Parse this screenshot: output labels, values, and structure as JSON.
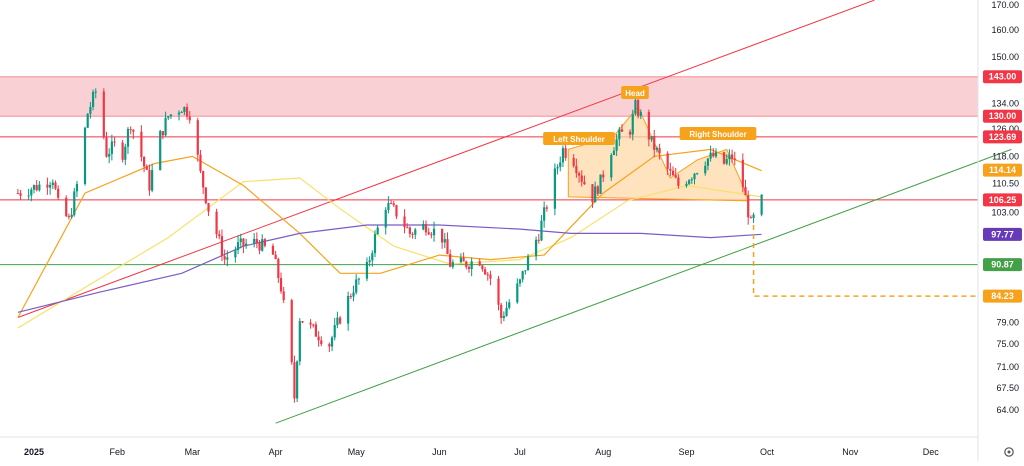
{
  "chart_data": {
    "type": "candlestick",
    "y_axis": {
      "scale": "log",
      "range": [
        61,
        172
      ],
      "ticks": [
        "170.00",
        "160.00",
        "150.00",
        "134.00",
        "126.00",
        "118.00",
        "110.50",
        "103.00",
        "79.00",
        "75.00",
        "71.00",
        "67.50",
        "64.00"
      ]
    },
    "x_axis": {
      "range": [
        "2024-12-26",
        "2025-12-31"
      ],
      "ticks": [
        {
          "label": "2025",
          "date": "2025-01-01",
          "bold": true
        },
        {
          "label": "Feb",
          "date": "2025-02-01",
          "bold": false
        },
        {
          "label": "Mar",
          "date": "2025-03-01",
          "bold": false
        },
        {
          "label": "Apr",
          "date": "2025-04-01",
          "bold": false
        },
        {
          "label": "May",
          "date": "2025-05-01",
          "bold": false
        },
        {
          "label": "Jun",
          "date": "2025-06-01",
          "bold": false
        },
        {
          "label": "Jul",
          "date": "2025-07-01",
          "bold": false
        },
        {
          "label": "Aug",
          "date": "2025-08-01",
          "bold": false
        },
        {
          "label": "Sep",
          "date": "2025-09-01",
          "bold": false
        },
        {
          "label": "Oct",
          "date": "2025-10-01",
          "bold": false
        },
        {
          "label": "Nov",
          "date": "2025-11-01",
          "bold": false
        },
        {
          "label": "Dec",
          "date": "2025-12-01",
          "bold": false
        }
      ]
    },
    "price_keypoints": [
      [
        "2024-12-26",
        108
      ],
      [
        "2025-01-03",
        110
      ],
      [
        "2025-01-08",
        112
      ],
      [
        "2025-01-10",
        105
      ],
      [
        "2025-01-14",
        101
      ],
      [
        "2025-01-17",
        110
      ],
      [
        "2025-01-21",
        131
      ],
      [
        "2025-01-24",
        138
      ],
      [
        "2025-01-28",
        119
      ],
      [
        "2025-01-31",
        121
      ],
      [
        "2025-02-03",
        119
      ],
      [
        "2025-02-06",
        128
      ],
      [
        "2025-02-10",
        118
      ],
      [
        "2025-02-13",
        110
      ],
      [
        "2025-02-17",
        124
      ],
      [
        "2025-02-20",
        130
      ],
      [
        "2025-02-25",
        133
      ],
      [
        "2025-02-28",
        131
      ],
      [
        "2025-03-04",
        113
      ],
      [
        "2025-03-07",
        104
      ],
      [
        "2025-03-10",
        98
      ],
      [
        "2025-03-13",
        92
      ],
      [
        "2025-03-18",
        95
      ],
      [
        "2025-03-25",
        96
      ],
      [
        "2025-03-31",
        93
      ],
      [
        "2025-04-03",
        86
      ],
      [
        "2025-04-07",
        71
      ],
      [
        "2025-04-08",
        66
      ],
      [
        "2025-04-10",
        80
      ],
      [
        "2025-04-14",
        78
      ],
      [
        "2025-04-21",
        75
      ],
      [
        "2025-04-25",
        80
      ],
      [
        "2025-04-30",
        86
      ],
      [
        "2025-05-05",
        90
      ],
      [
        "2025-05-08",
        97
      ],
      [
        "2025-05-12",
        105
      ],
      [
        "2025-05-16",
        103
      ],
      [
        "2025-05-21",
        98
      ],
      [
        "2025-05-27",
        100
      ],
      [
        "2025-06-02",
        97
      ],
      [
        "2025-06-05",
        91
      ],
      [
        "2025-06-10",
        91
      ],
      [
        "2025-06-16",
        92
      ],
      [
        "2025-06-20",
        88
      ],
      [
        "2025-06-24",
        80
      ],
      [
        "2025-06-27",
        83
      ],
      [
        "2025-07-01",
        87
      ],
      [
        "2025-07-04",
        92
      ],
      [
        "2025-07-08",
        98
      ],
      [
        "2025-07-11",
        105
      ],
      [
        "2025-07-14",
        113
      ],
      [
        "2025-07-17",
        120
      ],
      [
        "2025-07-21",
        117
      ],
      [
        "2025-07-24",
        112
      ],
      [
        "2025-07-28",
        107
      ],
      [
        "2025-07-31",
        111
      ],
      [
        "2025-08-04",
        120
      ],
      [
        "2025-08-07",
        124
      ],
      [
        "2025-08-11",
        126
      ],
      [
        "2025-08-13",
        133
      ],
      [
        "2025-08-15",
        130
      ],
      [
        "2025-08-19",
        122
      ],
      [
        "2025-08-22",
        118
      ],
      [
        "2025-08-26",
        113
      ],
      [
        "2025-08-29",
        110
      ],
      [
        "2025-09-03",
        113
      ],
      [
        "2025-09-08",
        117
      ],
      [
        "2025-09-11",
        118
      ],
      [
        "2025-09-15",
        116
      ],
      [
        "2025-09-18",
        118
      ],
      [
        "2025-09-22",
        110
      ],
      [
        "2025-09-25",
        100
      ],
      [
        "2025-09-29",
        106
      ]
    ],
    "series": [
      {
        "points": [
          [
            "2024-12-26",
            78
          ],
          [
            "2025-01-20",
            86
          ],
          [
            "2025-02-20",
            97
          ],
          [
            "2025-03-20",
            111
          ],
          [
            "2025-04-10",
            112
          ],
          [
            "2025-04-25",
            104
          ],
          [
            "2025-05-15",
            95
          ],
          [
            "2025-06-05",
            91
          ],
          [
            "2025-07-01",
            92
          ],
          [
            "2025-07-20",
            97
          ],
          [
            "2025-08-10",
            106
          ],
          [
            "2025-09-01",
            110
          ],
          [
            "2025-09-29",
            107
          ]
        ]
      },
      {
        "points": [
          [
            "2024-12-26",
            80
          ],
          [
            "2025-01-20",
            108
          ],
          [
            "2025-02-15",
            116
          ],
          [
            "2025-03-01",
            118
          ],
          [
            "2025-03-20",
            110
          ],
          [
            "2025-04-10",
            98
          ],
          [
            "2025-04-25",
            89
          ],
          [
            "2025-05-10",
            89
          ],
          [
            "2025-06-01",
            93
          ],
          [
            "2025-06-20",
            92
          ],
          [
            "2025-07-10",
            93
          ],
          [
            "2025-08-01",
            108
          ],
          [
            "2025-08-20",
            118
          ],
          [
            "2025-09-10",
            120
          ],
          [
            "2025-09-29",
            114
          ]
        ]
      },
      {
        "points": [
          [
            "2024-12-26",
            81
          ],
          [
            "2025-01-25",
            85
          ],
          [
            "2025-02-25",
            89
          ],
          [
            "2025-03-20",
            95
          ],
          [
            "2025-04-10",
            98
          ],
          [
            "2025-05-05",
            100
          ],
          [
            "2025-06-01",
            100
          ],
          [
            "2025-07-01",
            99
          ],
          [
            "2025-07-20",
            98
          ],
          [
            "2025-08-15",
            98
          ],
          [
            "2025-09-10",
            97
          ],
          [
            "2025-09-29",
            97.77
          ]
        ]
      }
    ],
    "lines": [
      {
        "kind": "resistance-trend",
        "from": [
          "2024-12-26",
          80
        ],
        "to": [
          "2025-11-10",
          172
        ]
      },
      {
        "kind": "support-trend",
        "from": [
          "2025-04-01",
          62
        ],
        "to": [
          "2025-12-31",
          120
        ]
      },
      {
        "kind": "horizontal",
        "value": 106.25
      },
      {
        "kind": "horizontal",
        "value": 123.69
      },
      {
        "kind": "horizontal",
        "value": 90.87
      }
    ],
    "zone": {
      "from": 130.0,
      "to": 143.0
    },
    "pattern_fill": [
      [
        "2025-07-19",
        107
      ],
      [
        "2025-07-19",
        120
      ],
      [
        "2025-08-05",
        124
      ],
      [
        "2025-08-14",
        133
      ],
      [
        "2025-08-26",
        112
      ],
      [
        "2025-09-05",
        117
      ],
      [
        "2025-09-16",
        120
      ],
      [
        "2025-09-22",
        110
      ],
      [
        "2025-09-24",
        106
      ]
    ],
    "projection": {
      "start": [
        "2025-09-26",
        100
      ],
      "target": 84.23
    },
    "labels": {
      "left_shoulder": "Left Shoulder",
      "head": "Head",
      "right_shoulder": "Right Shoulder"
    },
    "price_badges": [
      {
        "value": 143.0,
        "text": "143.00",
        "color": "#f23645"
      },
      {
        "value": 130.0,
        "text": "130.00",
        "color": "#f23645"
      },
      {
        "value": 123.69,
        "text": "123.69",
        "color": "#f23645"
      },
      {
        "value": 114.14,
        "text": "114.14",
        "color": "#f7a21b"
      },
      {
        "value": 106.25,
        "text": "106.25",
        "color": "#f23645"
      },
      {
        "value": 97.77,
        "text": "97.77",
        "color": "#673ab7"
      },
      {
        "value": 90.87,
        "text": "90.87",
        "color": "#43a047"
      },
      {
        "value": 84.23,
        "text": "84.23",
        "color": "#f7a21b"
      }
    ],
    "colors": {
      "up": "#089981",
      "down": "#f23645",
      "zone": "#f8c9ce",
      "resistance": "#f23645",
      "support": "#43a047",
      "ma_orange": "#f7a21b",
      "ma_yellow": "#f5e26b",
      "ma_purple": "#7b5cc4",
      "pattern": "#ffd8a8",
      "projection": "#f7a21b"
    }
  }
}
